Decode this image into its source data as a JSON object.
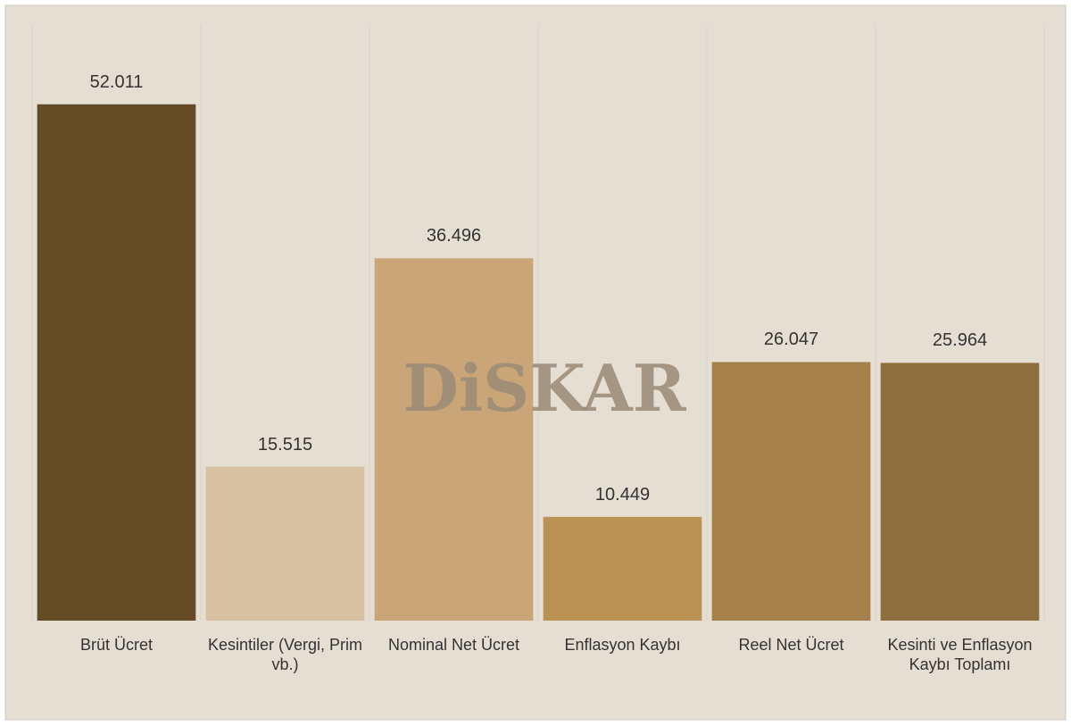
{
  "chart_data": {
    "type": "bar",
    "watermark": "DiSKAR",
    "categories": [
      "Brüt Ücret",
      "Kesintiler (Vergi, Prim vb.)",
      "Nominal Net Ücret",
      "Enflasyon Kaybı",
      "Reel Net Ücret",
      "Kesinti ve Enflasyon Kaybı Toplamı"
    ],
    "values": [
      52011,
      15515,
      36496,
      10449,
      26047,
      25964
    ],
    "value_labels": [
      "52.011",
      "15.515",
      "36.496",
      "10.449",
      "26.047",
      "25.964"
    ],
    "colors": [
      "#654b26",
      "#d8c0a3",
      "#c9a578",
      "#b99254",
      "#a6804a",
      "#8e6e3f"
    ],
    "ylim": [
      0,
      60000
    ],
    "grid": true
  }
}
